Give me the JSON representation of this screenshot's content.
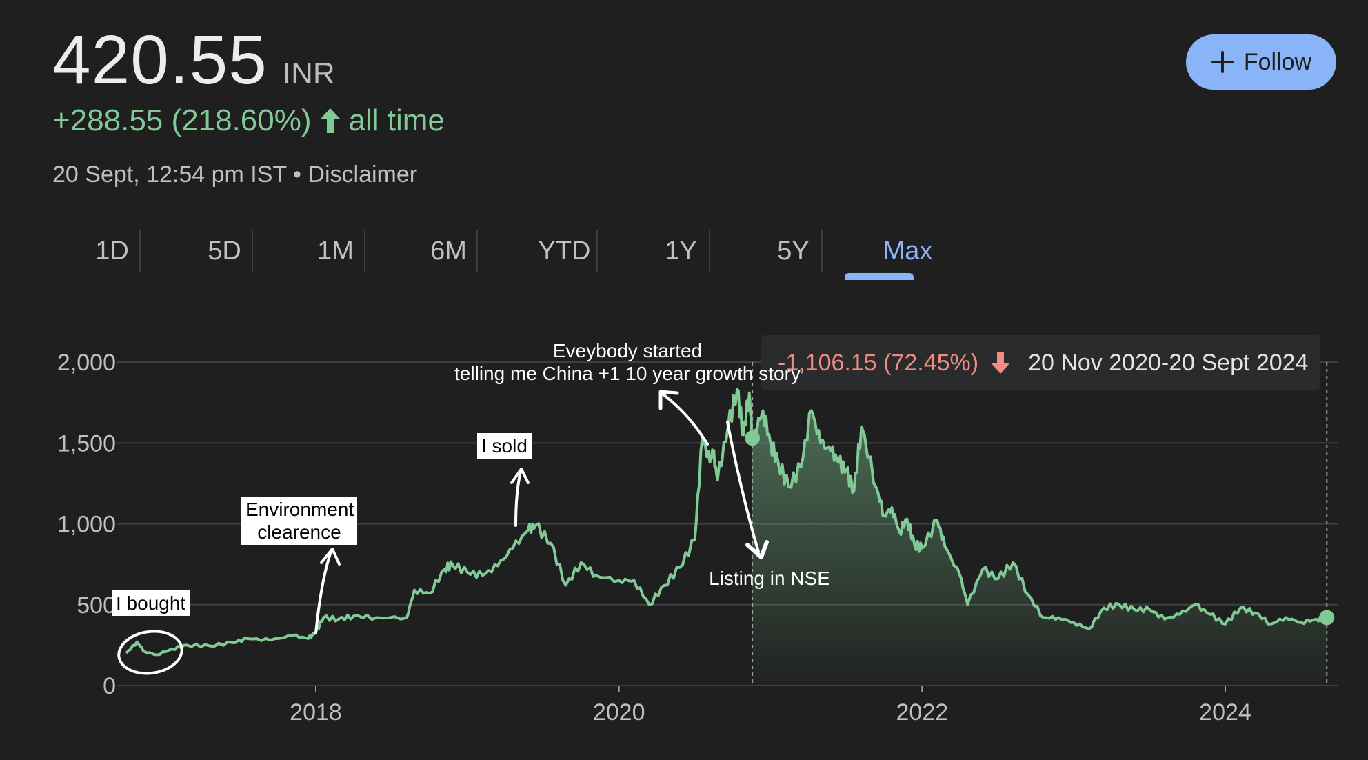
{
  "header": {
    "price": "420.55",
    "currency": "INR",
    "change": "+288.55 (218.60%)",
    "change_period": "all time",
    "timestamp": "20 Sept, 12:54 pm IST",
    "separator": "•",
    "disclaimer": "Disclaimer",
    "follow_label": "Follow"
  },
  "tabs": [
    {
      "label": "1D",
      "active": false
    },
    {
      "label": "5D",
      "active": false
    },
    {
      "label": "1M",
      "active": false
    },
    {
      "label": "6M",
      "active": false
    },
    {
      "label": "YTD",
      "active": false
    },
    {
      "label": "1Y",
      "active": false
    },
    {
      "label": "5Y",
      "active": false
    },
    {
      "label": "Max",
      "active": true
    }
  ],
  "tooltip": {
    "change": "-1,106.15 (72.45%)",
    "range": "20 Nov 2020-20 Sept 2024"
  },
  "annotations": {
    "bought": "I bought",
    "environment_line1": "Environment",
    "environment_line2": "clearence",
    "sold": "I sold",
    "everybody_line1": "Eveybody started",
    "everybody_line2": "telling me China +1 10 year growth story",
    "listing": "Listing in NSE"
  },
  "colors": {
    "line": "#81c995",
    "negative": "#f28b82",
    "accent": "#8ab4f8",
    "background": "#1f1f1f",
    "grid": "#3c4043"
  },
  "chart_data": {
    "type": "line",
    "x_ticks": [
      "2018",
      "2020",
      "2022",
      "2024"
    ],
    "y_ticks": [
      "0",
      "500",
      "1,000",
      "1,500",
      "2,000"
    ],
    "ylim": [
      0,
      2000
    ],
    "xlim": [
      2016.75,
      2024.75
    ],
    "grid": true,
    "series": [
      {
        "x": [
          2016.75,
          2016.82,
          2016.87,
          2016.95,
          2017.05,
          2017.15,
          2017.3,
          2017.45,
          2017.55,
          2017.7,
          2017.85,
          2017.95,
          2018.0,
          2018.05,
          2018.15,
          2018.25,
          2018.4,
          2018.6,
          2018.65,
          2018.75,
          2018.85,
          2018.9,
          2019.0,
          2019.1,
          2019.2,
          2019.3,
          2019.4,
          2019.45,
          2019.55,
          2019.65,
          2019.75,
          2019.85,
          2020.0,
          2020.1,
          2020.2,
          2020.3,
          2020.4,
          2020.5,
          2020.55,
          2020.6,
          2020.62,
          2020.65,
          2020.72,
          2020.78,
          2020.82,
          2020.86,
          2020.88,
          2020.9,
          2020.95,
          2021.0,
          2021.05,
          2021.12,
          2021.2,
          2021.27,
          2021.33,
          2021.4,
          2021.45,
          2021.5,
          2021.55,
          2021.6,
          2021.7,
          2021.75,
          2021.8,
          2021.85,
          2021.9,
          2021.95,
          2022.0,
          2022.1,
          2022.15,
          2022.25,
          2022.3,
          2022.4,
          2022.5,
          2022.6,
          2022.7,
          2022.8,
          2022.9,
          2023.0,
          2023.1,
          2023.2,
          2023.3,
          2023.4,
          2023.5,
          2023.6,
          2023.7,
          2023.8,
          2023.9,
          2024.0,
          2024.1,
          2024.2,
          2024.3,
          2024.4,
          2024.5,
          2024.6,
          2024.67
        ],
        "y": [
          200,
          270,
          210,
          190,
          225,
          250,
          245,
          265,
          290,
          280,
          310,
          290,
          330,
          420,
          410,
          430,
          420,
          420,
          590,
          570,
          720,
          750,
          700,
          680,
          740,
          850,
          960,
          990,
          880,
          620,
          760,
          680,
          650,
          650,
          500,
          620,
          730,
          900,
          1530,
          1380,
          1450,
          1270,
          1600,
          1830,
          1550,
          1810,
          1530,
          1580,
          1700,
          1500,
          1380,
          1230,
          1350,
          1700,
          1500,
          1450,
          1380,
          1330,
          1200,
          1600,
          1220,
          1050,
          1100,
          950,
          1030,
          870,
          850,
          1020,
          860,
          680,
          500,
          720,
          660,
          760,
          560,
          420,
          420,
          390,
          350,
          480,
          500,
          470,
          470,
          410,
          440,
          500,
          440,
          380,
          480,
          450,
          380,
          420,
          390,
          410,
          420
        ]
      }
    ],
    "markers": [
      {
        "x": 2020.88,
        "y": 1530
      },
      {
        "x": 2024.67,
        "y": 420
      }
    ]
  }
}
